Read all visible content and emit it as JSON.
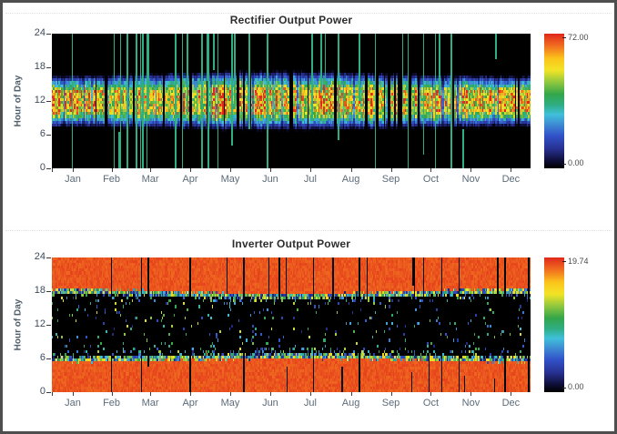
{
  "style": {
    "background": "#ffffff",
    "frame_color": "#4e4e4e",
    "separator_color": "#e2e2e2",
    "title_color": "#2d2d2d",
    "axis_title_color": "#4e5d6b",
    "tick_label_color": "#5c6b79",
    "ytick_label_color": "#3d4b5c",
    "colorbar_label_color": "#4a4a4a"
  },
  "colormap_stops": [
    [
      0.0,
      "#000000"
    ],
    [
      0.05,
      "#0d0d33"
    ],
    [
      0.14,
      "#27308f"
    ],
    [
      0.24,
      "#3152c9"
    ],
    [
      0.33,
      "#3f8fd4"
    ],
    [
      0.4,
      "#3fc0d9"
    ],
    [
      0.47,
      "#2fae84"
    ],
    [
      0.55,
      "#33a64a"
    ],
    [
      0.64,
      "#8fc73e"
    ],
    [
      0.73,
      "#f2e426"
    ],
    [
      0.82,
      "#fbc31b"
    ],
    [
      0.9,
      "#f2781f"
    ],
    [
      1.0,
      "#e12a1c"
    ]
  ],
  "chart_data": [
    {
      "type": "heatmap",
      "title": "Rectifier Output Power",
      "ylabel": "Hour of Day",
      "ylim": [
        0,
        24
      ],
      "yticks": [
        0,
        6,
        12,
        18,
        24
      ],
      "months": [
        "Jan",
        "Feb",
        "Mar",
        "Apr",
        "May",
        "Jun",
        "Jul",
        "Aug",
        "Sep",
        "Oct",
        "Nov",
        "Dec"
      ],
      "month_center_days": [
        16,
        45.5,
        75,
        105.5,
        136,
        166.5,
        197,
        228,
        258.5,
        289,
        319.5,
        350
      ],
      "days": 365,
      "value_range": [
        0,
        72
      ],
      "colorbar": {
        "max_label": "72.00",
        "min_label": "0.00"
      },
      "pattern": {
        "generator": "rectifier",
        "description": "Solar-driven rectifier output over one year: zero (black) at night, active band ~07:00-17:00 peaking 40-72 between ~09:00-14:00 with blue/indigo edges; scattered constant-value teal vertical stripes on random days; ~6% of days fully dark.",
        "daytime_hours": [
          7,
          17
        ],
        "peak_hours": [
          9,
          14
        ],
        "peak_value": 72,
        "night_value": 0,
        "stripe_value": 34,
        "stripe_days": 38,
        "blackout_day_fraction": 0.06,
        "cloudy_day_fraction": 0.08,
        "seed": 1337
      }
    },
    {
      "type": "heatmap",
      "title": "Inverter Output Power",
      "ylabel": "Hour of Day",
      "ylim": [
        0,
        24
      ],
      "yticks": [
        0,
        6,
        12,
        18,
        24
      ],
      "months": [
        "Jan",
        "Feb",
        "Mar",
        "Apr",
        "May",
        "Jun",
        "Jul",
        "Aug",
        "Sep",
        "Oct",
        "Nov",
        "Dec"
      ],
      "month_center_days": [
        16,
        45.5,
        75,
        105.5,
        136,
        166.5,
        197,
        228,
        258.5,
        289,
        319.5,
        350
      ],
      "days": 365,
      "value_range": [
        0,
        19.74
      ],
      "colorbar": {
        "max_label": "19.74",
        "min_label": "0.00"
      },
      "pattern": {
        "generator": "inverter",
        "description": "Inverter output over one year: high red-orange output (~18-19.5) at night from ~17.5h-24h and 0h-~6.2h, near-zero (black) daytime band ~07:00-17:00 with sparse colored speckles, yellow/green/cyan transition rows at the band boundaries, and random black vertical outage stripes.",
        "night_value": 18.6,
        "day_value": 0,
        "day_black_hours": [
          6.1,
          17.5
        ],
        "stripe_days": 30,
        "boundary_speckle_width_hours": 0.45,
        "seed": 4242
      }
    }
  ]
}
